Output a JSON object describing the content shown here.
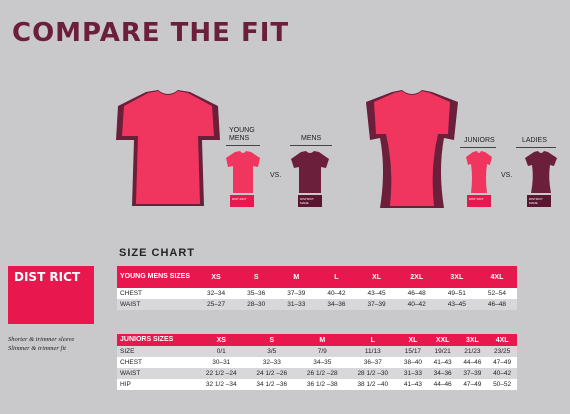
{
  "title": "COMPARE THE FIT",
  "fit_left": {
    "label_young": "YOUNG MENS",
    "label_mens": "MENS",
    "vs": "VS.",
    "tag_a": "DIST RICT",
    "tag_b": "DISTRICT MADE"
  },
  "fit_right": {
    "label_juniors": "JUNIORS",
    "label_ladies": "LADIES",
    "vs": "VS.",
    "tag_a": "DIST RICT",
    "tag_b": "DISTRICT MADE"
  },
  "size_chart_title": "SIZE CHART",
  "logo_text": "DIST RICT",
  "note_line1": "Shorter & trimmer sleeve",
  "note_line2": "Slimmer & trimmer fit",
  "colors": {
    "accent": "#e8184f",
    "maroon": "#6b1f3a",
    "bg": "#c9c9cc"
  },
  "young_mens": {
    "header": "YOUNG MENS SIZES",
    "sizes": [
      "XS",
      "S",
      "M",
      "L",
      "XL",
      "2XL",
      "3XL",
      "4XL"
    ],
    "rows": [
      {
        "label": "CHEST",
        "values": [
          "32–34",
          "35–36",
          "37–39",
          "40–42",
          "43–45",
          "46–48",
          "49–51",
          "52–54"
        ]
      },
      {
        "label": "WAIST",
        "values": [
          "25–27",
          "28–30",
          "31–33",
          "34–36",
          "37–39",
          "40–42",
          "43–45",
          "46–48"
        ]
      }
    ]
  },
  "juniors": {
    "header": "JUNIORS SIZES",
    "sizes": [
      "XS",
      "S",
      "M",
      "L",
      "XL",
      "XXL",
      "3XL",
      "4XL"
    ],
    "rows": [
      {
        "label": "SIZE",
        "values": [
          "0/1",
          "3/5",
          "7/9",
          "11/13",
          "15/17",
          "19/21",
          "21/23",
          "23/25"
        ]
      },
      {
        "label": "CHEST",
        "values": [
          "30–31",
          "32–33",
          "34–35",
          "36–37",
          "38–40",
          "41–43",
          "44–46",
          "47–49"
        ]
      },
      {
        "label": "WAIST",
        "values": [
          "22 1/2 –24",
          "24 1/2 –26",
          "26 1/2 –28",
          "28 1/2 –30",
          "31–33",
          "34–36",
          "37–39",
          "40–42"
        ]
      },
      {
        "label": "HIP",
        "values": [
          "32 1/2 –34",
          "34 1/2 –36",
          "36 1/2 –38",
          "38 1/2 –40",
          "41–43",
          "44–46",
          "47–49",
          "50–52"
        ]
      }
    ]
  }
}
